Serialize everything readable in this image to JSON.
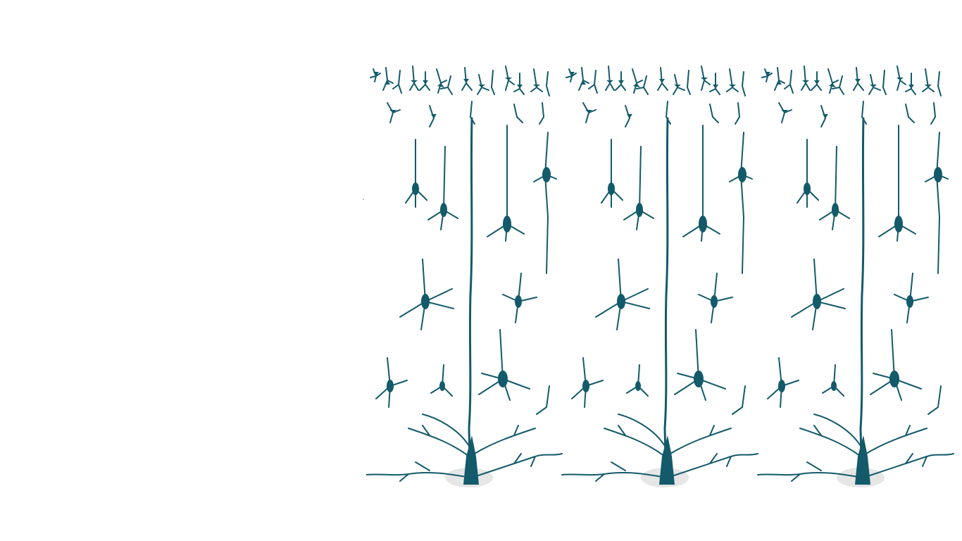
{
  "scene": {
    "subject": "neuron-cortex-illustration",
    "panel_count": 3,
    "colors": {
      "background": "#ffffff",
      "neuron": "#135a6a",
      "soma_highlight": "#e6e6e6"
    }
  }
}
